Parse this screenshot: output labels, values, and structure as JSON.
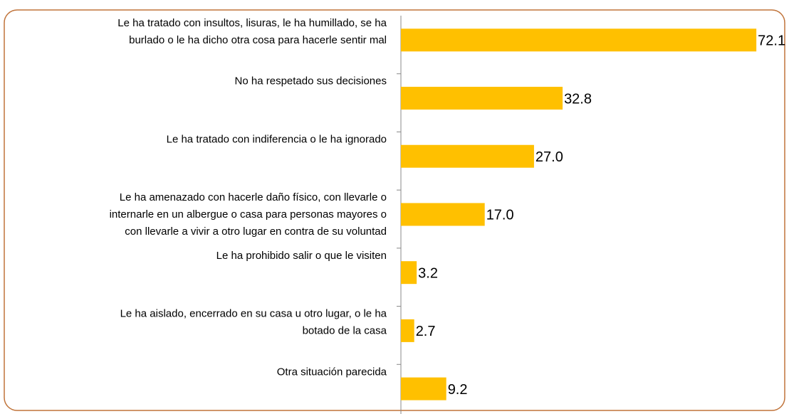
{
  "chart_data": {
    "type": "bar",
    "orientation": "horizontal",
    "categories": [
      [
        "Le ha tratado con insultos, lisuras, le ha humillado, se ha",
        "burlado o le ha dicho otra cosa para hacerle sentir mal"
      ],
      [
        "No ha respetado sus decisiones"
      ],
      [
        "Le ha tratado con indiferencia o le ha ignorado"
      ],
      [
        "Le ha amenazado con hacerle daño físico, con llevarle o",
        "internarle en un albergue o casa para personas mayores o",
        "con llevarle a vivir a otro lugar en contra de su voluntad"
      ],
      [
        "Le ha prohibido salir o que le visiten"
      ],
      [
        "Le ha aislado, encerrado en su casa u otro lugar, o le ha",
        "botado de la casa"
      ],
      [
        "Otra situación parecida"
      ]
    ],
    "values": [
      72.1,
      32.8,
      27.0,
      17.0,
      3.2,
      2.7,
      9.2
    ],
    "value_labels": [
      "72.1",
      "32.8",
      "27.0",
      "17.0",
      "3.2",
      "2.7",
      "9.2"
    ],
    "color": "#ffc000",
    "xlim": [
      0,
      78
    ]
  }
}
